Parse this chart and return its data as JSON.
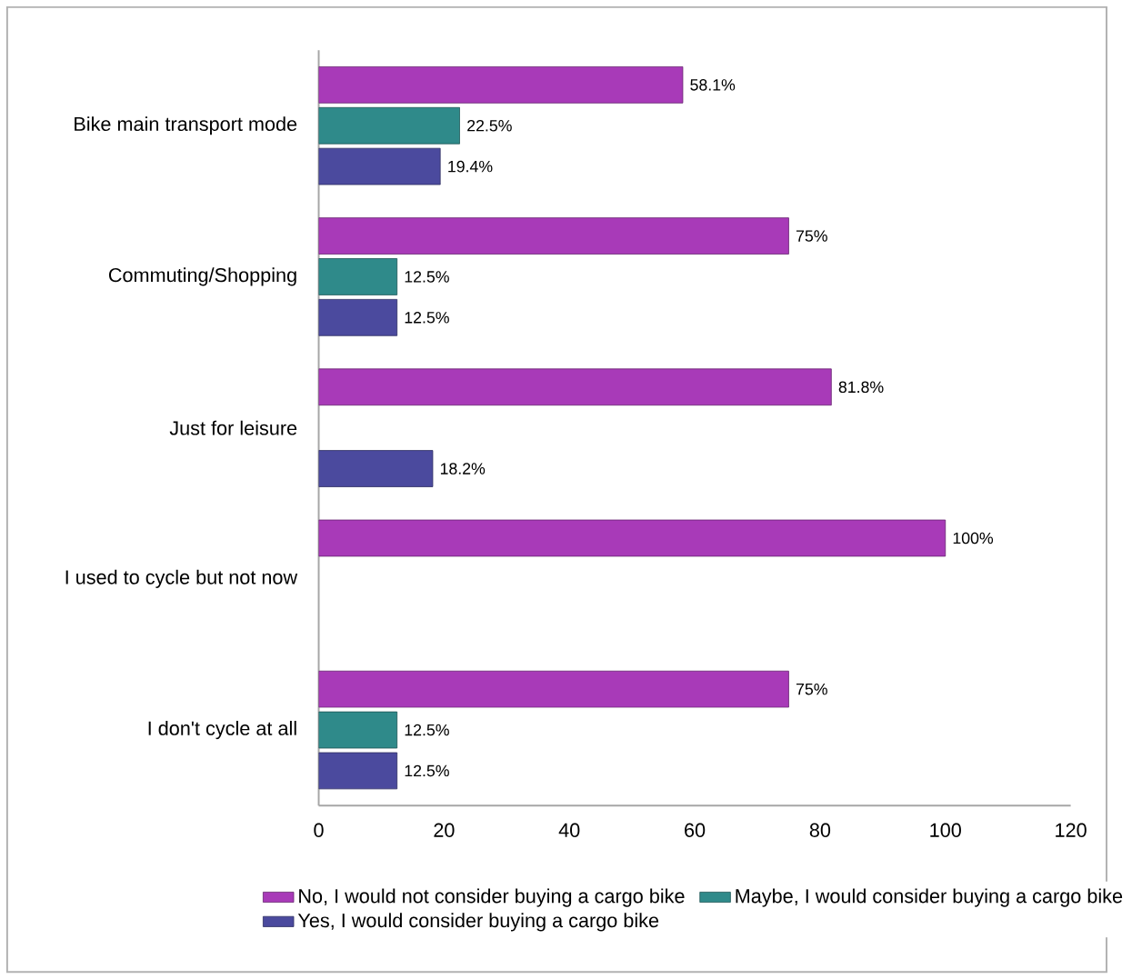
{
  "chart_data": {
    "type": "bar",
    "orientation": "horizontal",
    "categories": [
      "Bike main transport mode",
      "Commuting/Shopping",
      "Just for leisure",
      "I used to cycle but not now",
      "I don't cycle at all"
    ],
    "series": [
      {
        "name": "No, I would not consider buying a cargo bike",
        "color": "#a83ab8",
        "values": [
          58.1,
          75,
          81.8,
          100,
          75
        ],
        "value_labels": [
          "58.1%",
          "75%",
          "81.8%",
          "100%",
          "75%"
        ]
      },
      {
        "name": "Maybe, I would consider buying a cargo bike",
        "color": "#2f8a8a",
        "values": [
          22.5,
          12.5,
          null,
          null,
          12.5
        ],
        "value_labels": [
          "22.5%",
          "12.5%",
          null,
          null,
          "12.5%"
        ]
      },
      {
        "name": "Yes, I would consider buying a cargo bike",
        "color": "#4b4a9e",
        "values": [
          19.4,
          12.5,
          18.2,
          null,
          12.5
        ],
        "value_labels": [
          "19.4%",
          "12.5%",
          "18.2%",
          null,
          "12.5%"
        ]
      }
    ],
    "xlim": [
      0,
      120
    ],
    "xticks": [
      0,
      20,
      40,
      60,
      80,
      100,
      120
    ],
    "grid": false,
    "legend": "bottom"
  }
}
